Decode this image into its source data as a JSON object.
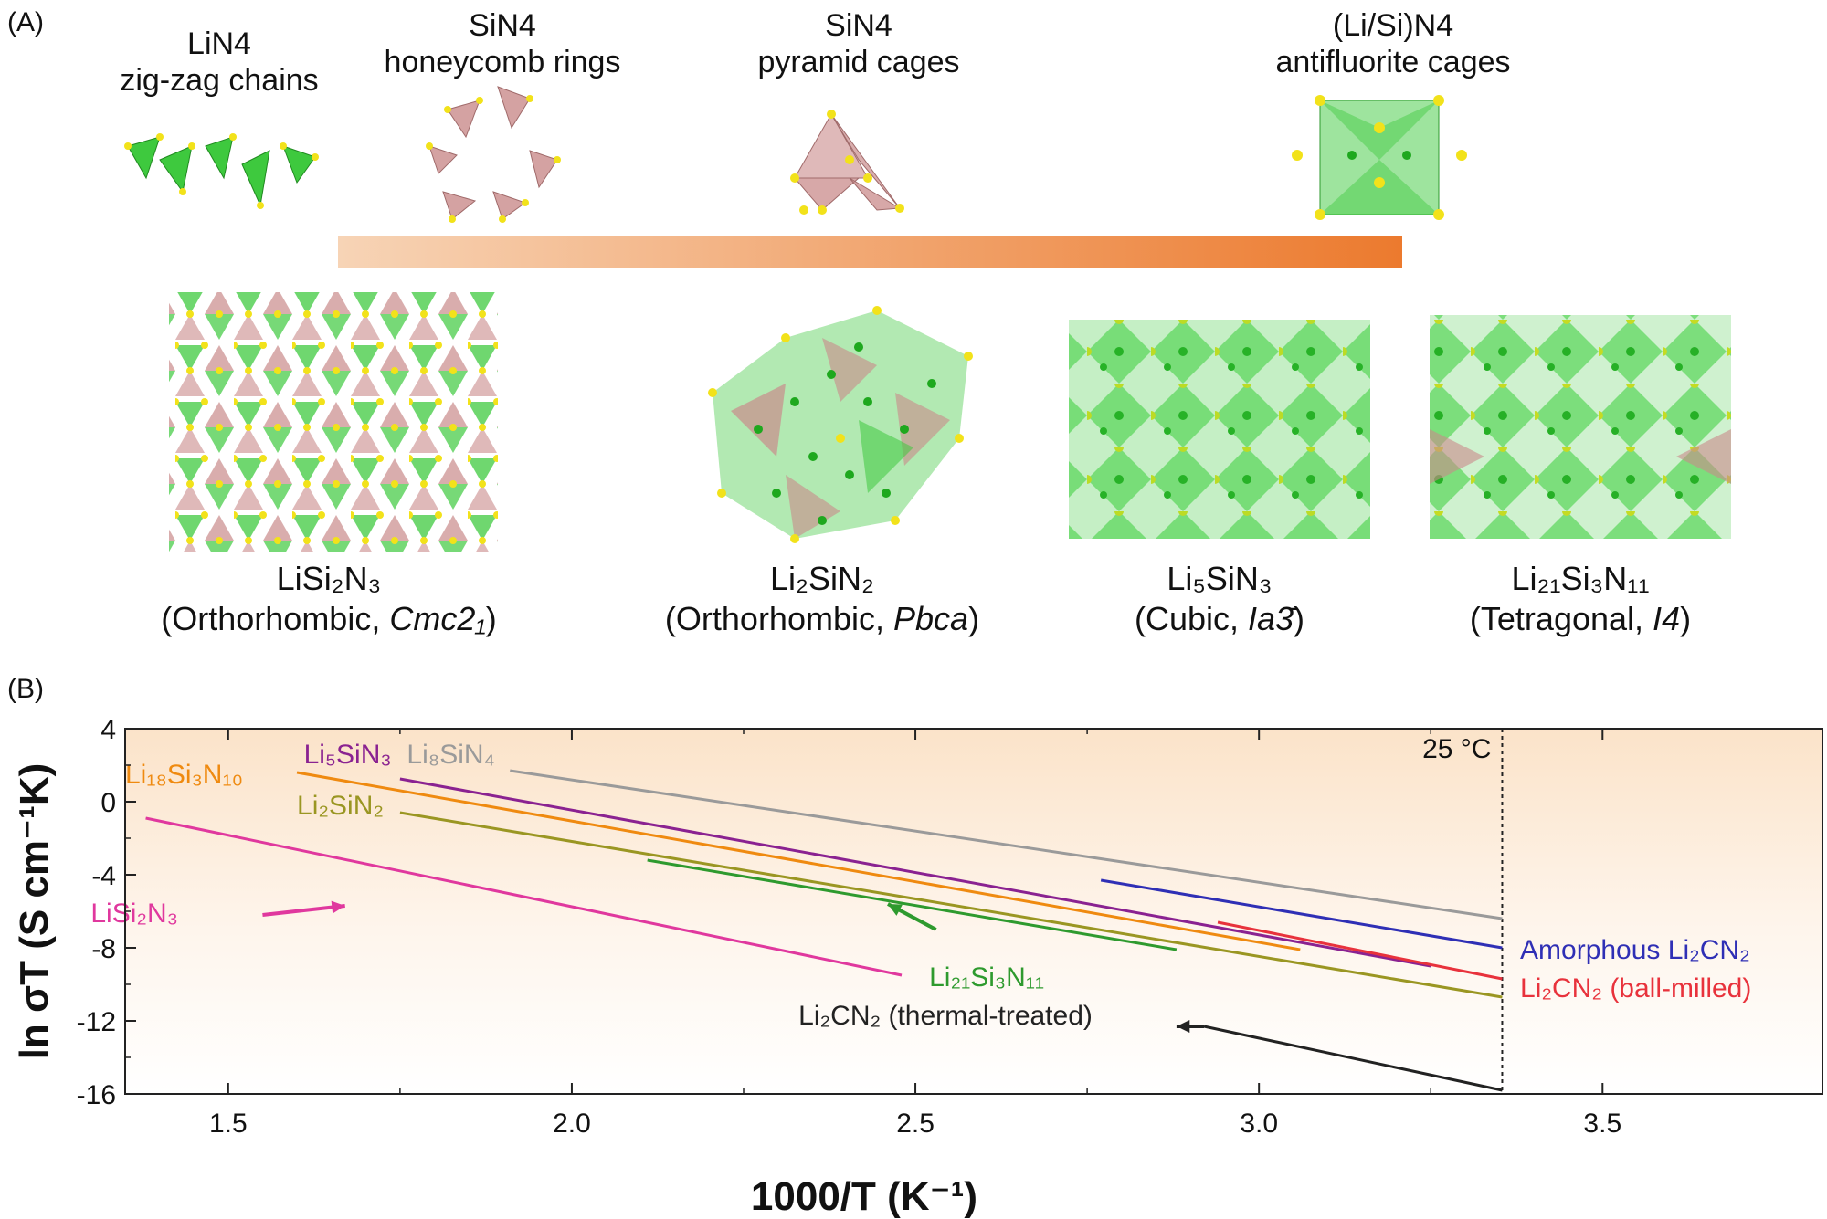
{
  "panels": {
    "a": "(A)",
    "b": "(B)"
  },
  "motifs": [
    {
      "line1": "LiN4",
      "line2": "zig-zag chains"
    },
    {
      "line1": "SiN4",
      "line2": "honeycomb rings"
    },
    {
      "line1": "SiN4",
      "line2": "pyramid cages"
    },
    {
      "line1": "(Li/Si)N4",
      "line2": "antifluorite cages"
    }
  ],
  "structures": [
    {
      "formula": "LiSi₂N₃",
      "prefix": "(Orthorhombic, ",
      "group": "Cmc2₁",
      "suffix": ")"
    },
    {
      "formula": "Li₂SiN₂",
      "prefix": "(Orthorhombic, ",
      "group": "Pbca",
      "suffix": ")"
    },
    {
      "formula": "Li₅SiN₃",
      "prefix": "(Cubic, ",
      "group": "Ia3̄",
      "suffix": ")"
    },
    {
      "formula": "Li₂₁Si₃N₁₁",
      "prefix": "(Tetragonal, ",
      "group": "I4",
      "suffix": ")"
    }
  ],
  "colors": {
    "li_tetra": "#3ec93e",
    "si_tetra": "#c98b8b",
    "n_atom": "#f2e21a",
    "gradient_start": "#f7d4b6",
    "gradient_end": "#ec7a2e"
  },
  "chart_data": {
    "type": "line",
    "xlabel": "1000/T (K⁻¹)",
    "ylabel": "ln σT (S cm⁻¹K)",
    "xlim": [
      1.35,
      3.82
    ],
    "ylim": [
      -16,
      4
    ],
    "xticks": [
      1.5,
      2.0,
      2.5,
      3.0,
      3.5
    ],
    "xtick_labels": [
      "1.5",
      "2.0",
      "2.5",
      "3.0",
      "3.5"
    ],
    "yticks": [
      4,
      0,
      -4,
      -8,
      -12,
      -16
    ],
    "ytick_labels": [
      "4",
      "0",
      "-4",
      "-8",
      "-12",
      "-16"
    ],
    "reference_line": {
      "x": 3.354,
      "label": "25 °C"
    },
    "series": [
      {
        "name": "Li₈SiN₄",
        "color": "#9a9a9a",
        "points": [
          [
            1.91,
            1.7
          ],
          [
            3.354,
            -6.4
          ]
        ],
        "label_at": [
          1.76,
          2.1
        ]
      },
      {
        "name": "Li₅SiN₃",
        "color": "#8a2291",
        "points": [
          [
            1.75,
            1.25
          ],
          [
            3.25,
            -9.0
          ]
        ],
        "label_at": [
          1.61,
          2.1
        ]
      },
      {
        "name": "Li₁₈Si₃N₁₀",
        "color": "#ef8a10",
        "points": [
          [
            1.6,
            1.6
          ],
          [
            3.06,
            -8.1
          ]
        ],
        "label_at": [
          1.35,
          1.0
        ]
      },
      {
        "name": "Li₂SiN₂",
        "color": "#9a9622",
        "points": [
          [
            1.75,
            -0.6
          ],
          [
            3.354,
            -10.7
          ]
        ],
        "label_at": [
          1.6,
          -0.7
        ]
      },
      {
        "name": "LiSi₂N₃",
        "color": "#e0389e",
        "points": [
          [
            1.38,
            -0.9
          ],
          [
            2.48,
            -9.5
          ]
        ],
        "label_at": [
          1.3,
          -6.6
        ]
      },
      {
        "name": "Li₂₁Si₃N₁₁",
        "color": "#2e9a2e",
        "points": [
          [
            2.11,
            -3.2
          ],
          [
            2.88,
            -8.1
          ]
        ],
        "label_at": [
          2.52,
          -10.1
        ]
      },
      {
        "name": "Amorphous Li₂CN₂",
        "color": "#2f2fb5",
        "points": [
          [
            2.77,
            -4.3
          ],
          [
            3.354,
            -8.0
          ]
        ],
        "label_at": [
          3.38,
          -8.6
        ]
      },
      {
        "name": "Li₂CN₂ (ball-milled)",
        "color": "#e8323c",
        "points": [
          [
            2.94,
            -6.6
          ],
          [
            3.354,
            -9.7
          ]
        ],
        "label_at": [
          3.38,
          -10.7
        ]
      },
      {
        "name": "Li₂CN₂ (thermal-treated)",
        "color": "#222222",
        "points": [
          [
            2.92,
            -12.3
          ],
          [
            3.354,
            -15.8
          ]
        ],
        "label_at": [
          2.33,
          -12.2
        ]
      }
    ]
  }
}
